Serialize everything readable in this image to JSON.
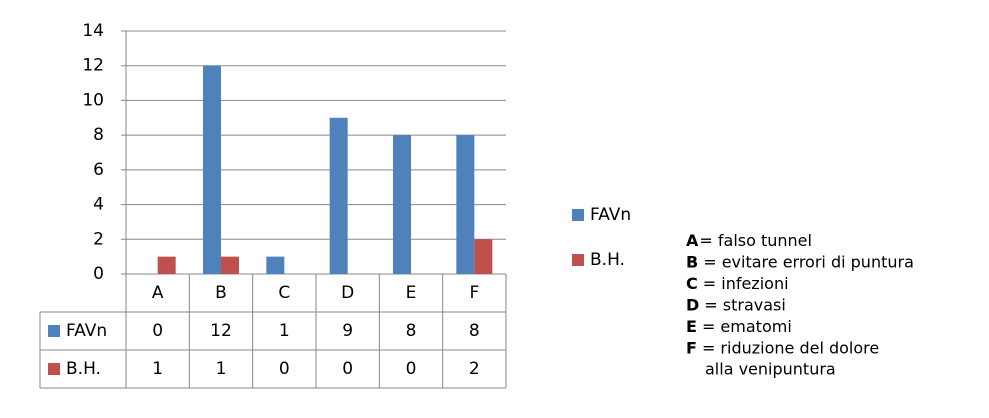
{
  "chart_data": {
    "type": "bar",
    "categories": [
      "A",
      "B",
      "C",
      "D",
      "E",
      "F"
    ],
    "series": [
      {
        "name": "FAVn",
        "color": "#4f81bd",
        "values": [
          0,
          12,
          1,
          9,
          8,
          8
        ]
      },
      {
        "name": "B.H.",
        "color": "#c0504d",
        "values": [
          1,
          1,
          0,
          0,
          0,
          2
        ]
      }
    ],
    "ylim": [
      0,
      14
    ],
    "yticks": [
      0,
      2,
      4,
      6,
      8,
      10,
      12,
      14
    ],
    "grid": true,
    "notes": [
      {
        "letter": "A",
        "text": "= falso tunnel"
      },
      {
        "letter": "B",
        "text": "= evitare errori  di puntura"
      },
      {
        "letter": "C",
        "text": "= infezioni"
      },
      {
        "letter": "D",
        "text": "= stravasi"
      },
      {
        "letter": "E",
        "text": "= ematomi"
      },
      {
        "letter": "F",
        "text": "= riduzione del dolore",
        "continuation": "alla venipuntura"
      }
    ]
  }
}
